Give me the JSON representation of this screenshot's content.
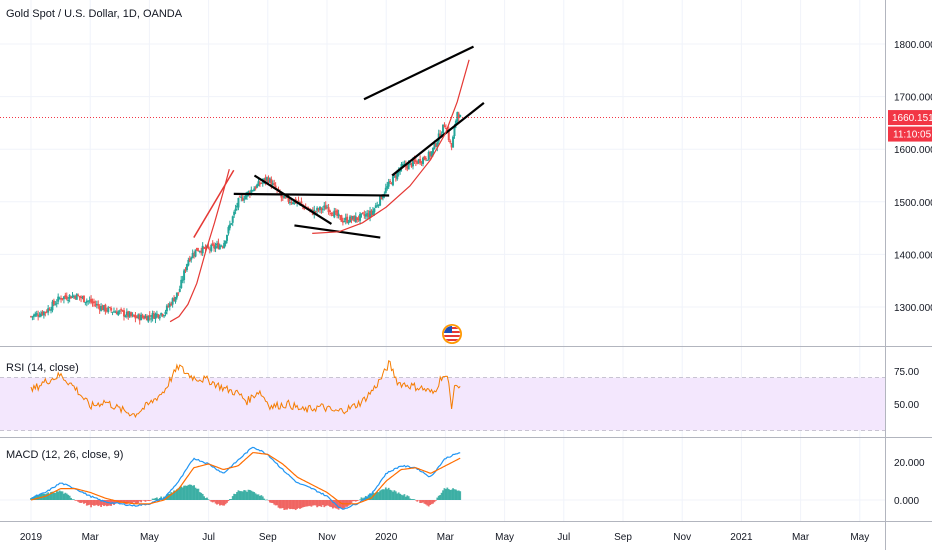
{
  "chart_data": [
    {
      "type": "candlestick",
      "title": "Gold Spot / U.S. Dollar, 1D, OANDA",
      "y_ticks": [
        "1300.000",
        "1400.000",
        "1500.000",
        "1600.000",
        "1700.000",
        "1800.000"
      ],
      "ylim": [
        1200,
        1880
      ],
      "last_price_label": "1660.151",
      "last_price": 1660.151,
      "countdown_label": "11:10:05",
      "x_ticks": [
        "2019",
        "Mar",
        "May",
        "Jul",
        "Sep",
        "Nov",
        "2020",
        "Mar",
        "May",
        "Jul",
        "Sep",
        "Nov",
        "2021",
        "Mar",
        "May"
      ],
      "x_tick_months": [
        0,
        2,
        4,
        6,
        8,
        10,
        12,
        14,
        16,
        18,
        20,
        22,
        24,
        26,
        28
      ],
      "price_anchors": [
        {
          "m": 0.0,
          "v": 1282
        },
        {
          "m": 0.5,
          "v": 1292
        },
        {
          "m": 1.0,
          "v": 1318
        },
        {
          "m": 1.5,
          "v": 1322
        },
        {
          "m": 2.0,
          "v": 1310
        },
        {
          "m": 2.5,
          "v": 1296
        },
        {
          "m": 3.0,
          "v": 1290
        },
        {
          "m": 3.5,
          "v": 1280
        },
        {
          "m": 4.0,
          "v": 1282
        },
        {
          "m": 4.5,
          "v": 1290
        },
        {
          "m": 5.0,
          "v": 1330
        },
        {
          "m": 5.3,
          "v": 1390
        },
        {
          "m": 5.6,
          "v": 1410
        },
        {
          "m": 6.0,
          "v": 1410
        },
        {
          "m": 6.5,
          "v": 1420
        },
        {
          "m": 7.0,
          "v": 1500
        },
        {
          "m": 7.5,
          "v": 1525
        },
        {
          "m": 8.0,
          "v": 1545
        },
        {
          "m": 8.5,
          "v": 1505
        },
        {
          "m": 9.0,
          "v": 1500
        },
        {
          "m": 9.5,
          "v": 1480
        },
        {
          "m": 10.0,
          "v": 1490
        },
        {
          "m": 10.5,
          "v": 1465
        },
        {
          "m": 11.0,
          "v": 1468
        },
        {
          "m": 11.5,
          "v": 1478
        },
        {
          "m": 12.0,
          "v": 1525
        },
        {
          "m": 12.5,
          "v": 1565
        },
        {
          "m": 13.0,
          "v": 1575
        },
        {
          "m": 13.5,
          "v": 1590
        },
        {
          "m": 14.0,
          "v": 1650
        },
        {
          "m": 14.2,
          "v": 1600
        },
        {
          "m": 14.4,
          "v": 1672
        },
        {
          "m": 14.5,
          "v": 1660
        }
      ],
      "drawn_lines": [
        {
          "name": "channel-upper",
          "m1": 11.25,
          "v1": 1695,
          "m2": 14.95,
          "v2": 1795
        },
        {
          "name": "channel-lower",
          "m1": 12.2,
          "v1": 1550,
          "m2": 15.3,
          "v2": 1688
        },
        {
          "name": "red-trend",
          "m1": 5.5,
          "v1": 1432,
          "m2": 6.85,
          "v2": 1560
        },
        {
          "name": "horizontal-support",
          "m1": 6.85,
          "v1": 1515,
          "m2": 12.1,
          "v2": 1512
        },
        {
          "name": "wedge-upper",
          "m1": 7.55,
          "v1": 1550,
          "m2": 10.15,
          "v2": 1458
        },
        {
          "name": "wedge-lower",
          "m1": 8.9,
          "v1": 1455,
          "m2": 11.8,
          "v2": 1432
        }
      ],
      "parabola_arcs": [
        {
          "name": "arc-left",
          "points": [
            {
              "m": 4.7,
              "v": 1272
            },
            {
              "m": 5.0,
              "v": 1282
            },
            {
              "m": 5.3,
              "v": 1305
            },
            {
              "m": 5.6,
              "v": 1345
            },
            {
              "m": 5.9,
              "v": 1405
            },
            {
              "m": 6.2,
              "v": 1460
            },
            {
              "m": 6.5,
              "v": 1520
            },
            {
              "m": 6.7,
              "v": 1562
            }
          ]
        },
        {
          "name": "arc-right",
          "points": [
            {
              "m": 9.5,
              "v": 1440
            },
            {
              "m": 10.4,
              "v": 1443
            },
            {
              "m": 11.2,
              "v": 1460
            },
            {
              "m": 12.0,
              "v": 1490
            },
            {
              "m": 12.8,
              "v": 1530
            },
            {
              "m": 13.5,
              "v": 1580
            },
            {
              "m": 14.0,
              "v": 1630
            },
            {
              "m": 14.4,
              "v": 1690
            },
            {
              "m": 14.8,
              "v": 1770
            }
          ]
        }
      ]
    },
    {
      "type": "line",
      "title": "RSI (14, close)",
      "y_ticks": [
        "75.00",
        "50.00"
      ],
      "ylim": [
        30,
        85
      ],
      "band": [
        30,
        70
      ],
      "colors": {
        "line": "#f57c00",
        "band": "#f3e7fd"
      },
      "anchors": [
        {
          "m": 0.0,
          "v": 60
        },
        {
          "m": 0.4,
          "v": 66
        },
        {
          "m": 1.0,
          "v": 72
        },
        {
          "m": 1.5,
          "v": 62
        },
        {
          "m": 2.0,
          "v": 48
        },
        {
          "m": 2.5,
          "v": 52
        },
        {
          "m": 3.0,
          "v": 46
        },
        {
          "m": 3.5,
          "v": 42
        },
        {
          "m": 4.0,
          "v": 50
        },
        {
          "m": 4.5,
          "v": 60
        },
        {
          "m": 4.8,
          "v": 72
        },
        {
          "m": 5.0,
          "v": 79
        },
        {
          "m": 5.2,
          "v": 74
        },
        {
          "m": 5.5,
          "v": 70
        },
        {
          "m": 6.0,
          "v": 68
        },
        {
          "m": 6.5,
          "v": 62
        },
        {
          "m": 7.0,
          "v": 58
        },
        {
          "m": 7.3,
          "v": 52
        },
        {
          "m": 7.7,
          "v": 60
        },
        {
          "m": 8.1,
          "v": 48
        },
        {
          "m": 8.7,
          "v": 50
        },
        {
          "m": 9.2,
          "v": 45
        },
        {
          "m": 9.8,
          "v": 48
        },
        {
          "m": 10.3,
          "v": 44
        },
        {
          "m": 10.8,
          "v": 47
        },
        {
          "m": 11.2,
          "v": 52
        },
        {
          "m": 11.6,
          "v": 62
        },
        {
          "m": 11.9,
          "v": 72
        },
        {
          "m": 12.1,
          "v": 81
        },
        {
          "m": 12.4,
          "v": 66
        },
        {
          "m": 12.8,
          "v": 64
        },
        {
          "m": 13.2,
          "v": 62
        },
        {
          "m": 13.6,
          "v": 58
        },
        {
          "m": 13.9,
          "v": 72
        },
        {
          "m": 14.1,
          "v": 68
        },
        {
          "m": 14.2,
          "v": 48
        },
        {
          "m": 14.35,
          "v": 66
        },
        {
          "m": 14.5,
          "v": 61
        }
      ]
    },
    {
      "type": "line",
      "title": "MACD (12, 26, close, 9)",
      "y_ticks": [
        "20.000",
        "0.000"
      ],
      "ylim": [
        -8,
        30
      ],
      "colors": {
        "macd": "#2196f3",
        "signal": "#ff6d00",
        "hist_pos": "#26a69a",
        "hist_neg": "#ef5350"
      },
      "macd_anchors": [
        {
          "m": 0.0,
          "v": 1
        },
        {
          "m": 0.5,
          "v": 4
        },
        {
          "m": 1.0,
          "v": 9
        },
        {
          "m": 1.5,
          "v": 6
        },
        {
          "m": 2.0,
          "v": 2
        },
        {
          "m": 2.5,
          "v": -1
        },
        {
          "m": 3.0,
          "v": -2
        },
        {
          "m": 3.5,
          "v": -3
        },
        {
          "m": 4.0,
          "v": -2
        },
        {
          "m": 4.5,
          "v": 1
        },
        {
          "m": 5.0,
          "v": 10
        },
        {
          "m": 5.5,
          "v": 22
        },
        {
          "m": 6.0,
          "v": 19
        },
        {
          "m": 6.5,
          "v": 14
        },
        {
          "m": 7.0,
          "v": 21
        },
        {
          "m": 7.5,
          "v": 28
        },
        {
          "m": 8.0,
          "v": 24
        },
        {
          "m": 8.5,
          "v": 16
        },
        {
          "m": 9.0,
          "v": 9
        },
        {
          "m": 9.5,
          "v": 6
        },
        {
          "m": 10.0,
          "v": 2
        },
        {
          "m": 10.5,
          "v": -5
        },
        {
          "m": 11.0,
          "v": -2
        },
        {
          "m": 11.5,
          "v": 3
        },
        {
          "m": 12.0,
          "v": 14
        },
        {
          "m": 12.5,
          "v": 18
        },
        {
          "m": 13.0,
          "v": 17
        },
        {
          "m": 13.5,
          "v": 12
        },
        {
          "m": 14.0,
          "v": 22
        },
        {
          "m": 14.5,
          "v": 25
        }
      ],
      "signal_anchors": [
        {
          "m": 0.0,
          "v": 0
        },
        {
          "m": 0.5,
          "v": 2
        },
        {
          "m": 1.0,
          "v": 6
        },
        {
          "m": 1.5,
          "v": 6
        },
        {
          "m": 2.0,
          "v": 4
        },
        {
          "m": 2.5,
          "v": 1
        },
        {
          "m": 3.0,
          "v": -1
        },
        {
          "m": 3.5,
          "v": -2
        },
        {
          "m": 4.0,
          "v": -2
        },
        {
          "m": 4.5,
          "v": 0
        },
        {
          "m": 5.0,
          "v": 6
        },
        {
          "m": 5.5,
          "v": 17
        },
        {
          "m": 6.0,
          "v": 19
        },
        {
          "m": 6.5,
          "v": 16
        },
        {
          "m": 7.0,
          "v": 18
        },
        {
          "m": 7.5,
          "v": 25
        },
        {
          "m": 8.0,
          "v": 24
        },
        {
          "m": 8.5,
          "v": 19
        },
        {
          "m": 9.0,
          "v": 12
        },
        {
          "m": 9.5,
          "v": 8
        },
        {
          "m": 10.0,
          "v": 4
        },
        {
          "m": 10.5,
          "v": -2
        },
        {
          "m": 11.0,
          "v": -2
        },
        {
          "m": 11.5,
          "v": 1
        },
        {
          "m": 12.0,
          "v": 10
        },
        {
          "m": 12.5,
          "v": 16
        },
        {
          "m": 13.0,
          "v": 17
        },
        {
          "m": 13.5,
          "v": 14
        },
        {
          "m": 14.0,
          "v": 18
        },
        {
          "m": 14.5,
          "v": 22
        }
      ]
    }
  ]
}
